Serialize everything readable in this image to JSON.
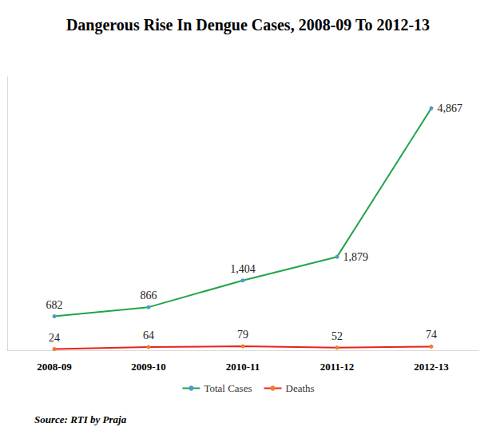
{
  "chart_data": {
    "type": "line",
    "title": "Dangerous Rise In Dengue Cases, 2008-09 To 2012-13",
    "source": "Source: RTI by Praja",
    "categories": [
      "2008-09",
      "2009-10",
      "2010-11",
      "2011-12",
      "2012-13"
    ],
    "series": [
      {
        "name": "Total Cases",
        "color": "#1fa54a",
        "values": [
          682,
          866,
          1404,
          1879,
          4867
        ],
        "value_labels": [
          "682",
          "866",
          "1,404",
          "1,879",
          "4,867"
        ]
      },
      {
        "name": "Deaths",
        "color": "#e8231c",
        "values": [
          24,
          64,
          79,
          52,
          74
        ],
        "value_labels": [
          "24",
          "64",
          "79",
          "52",
          "74"
        ]
      }
    ],
    "ylim": [
      0,
      5500
    ],
    "marker": "circle",
    "data_labels": true,
    "tick_labels": "x",
    "grid": false,
    "legend": "bottom"
  }
}
